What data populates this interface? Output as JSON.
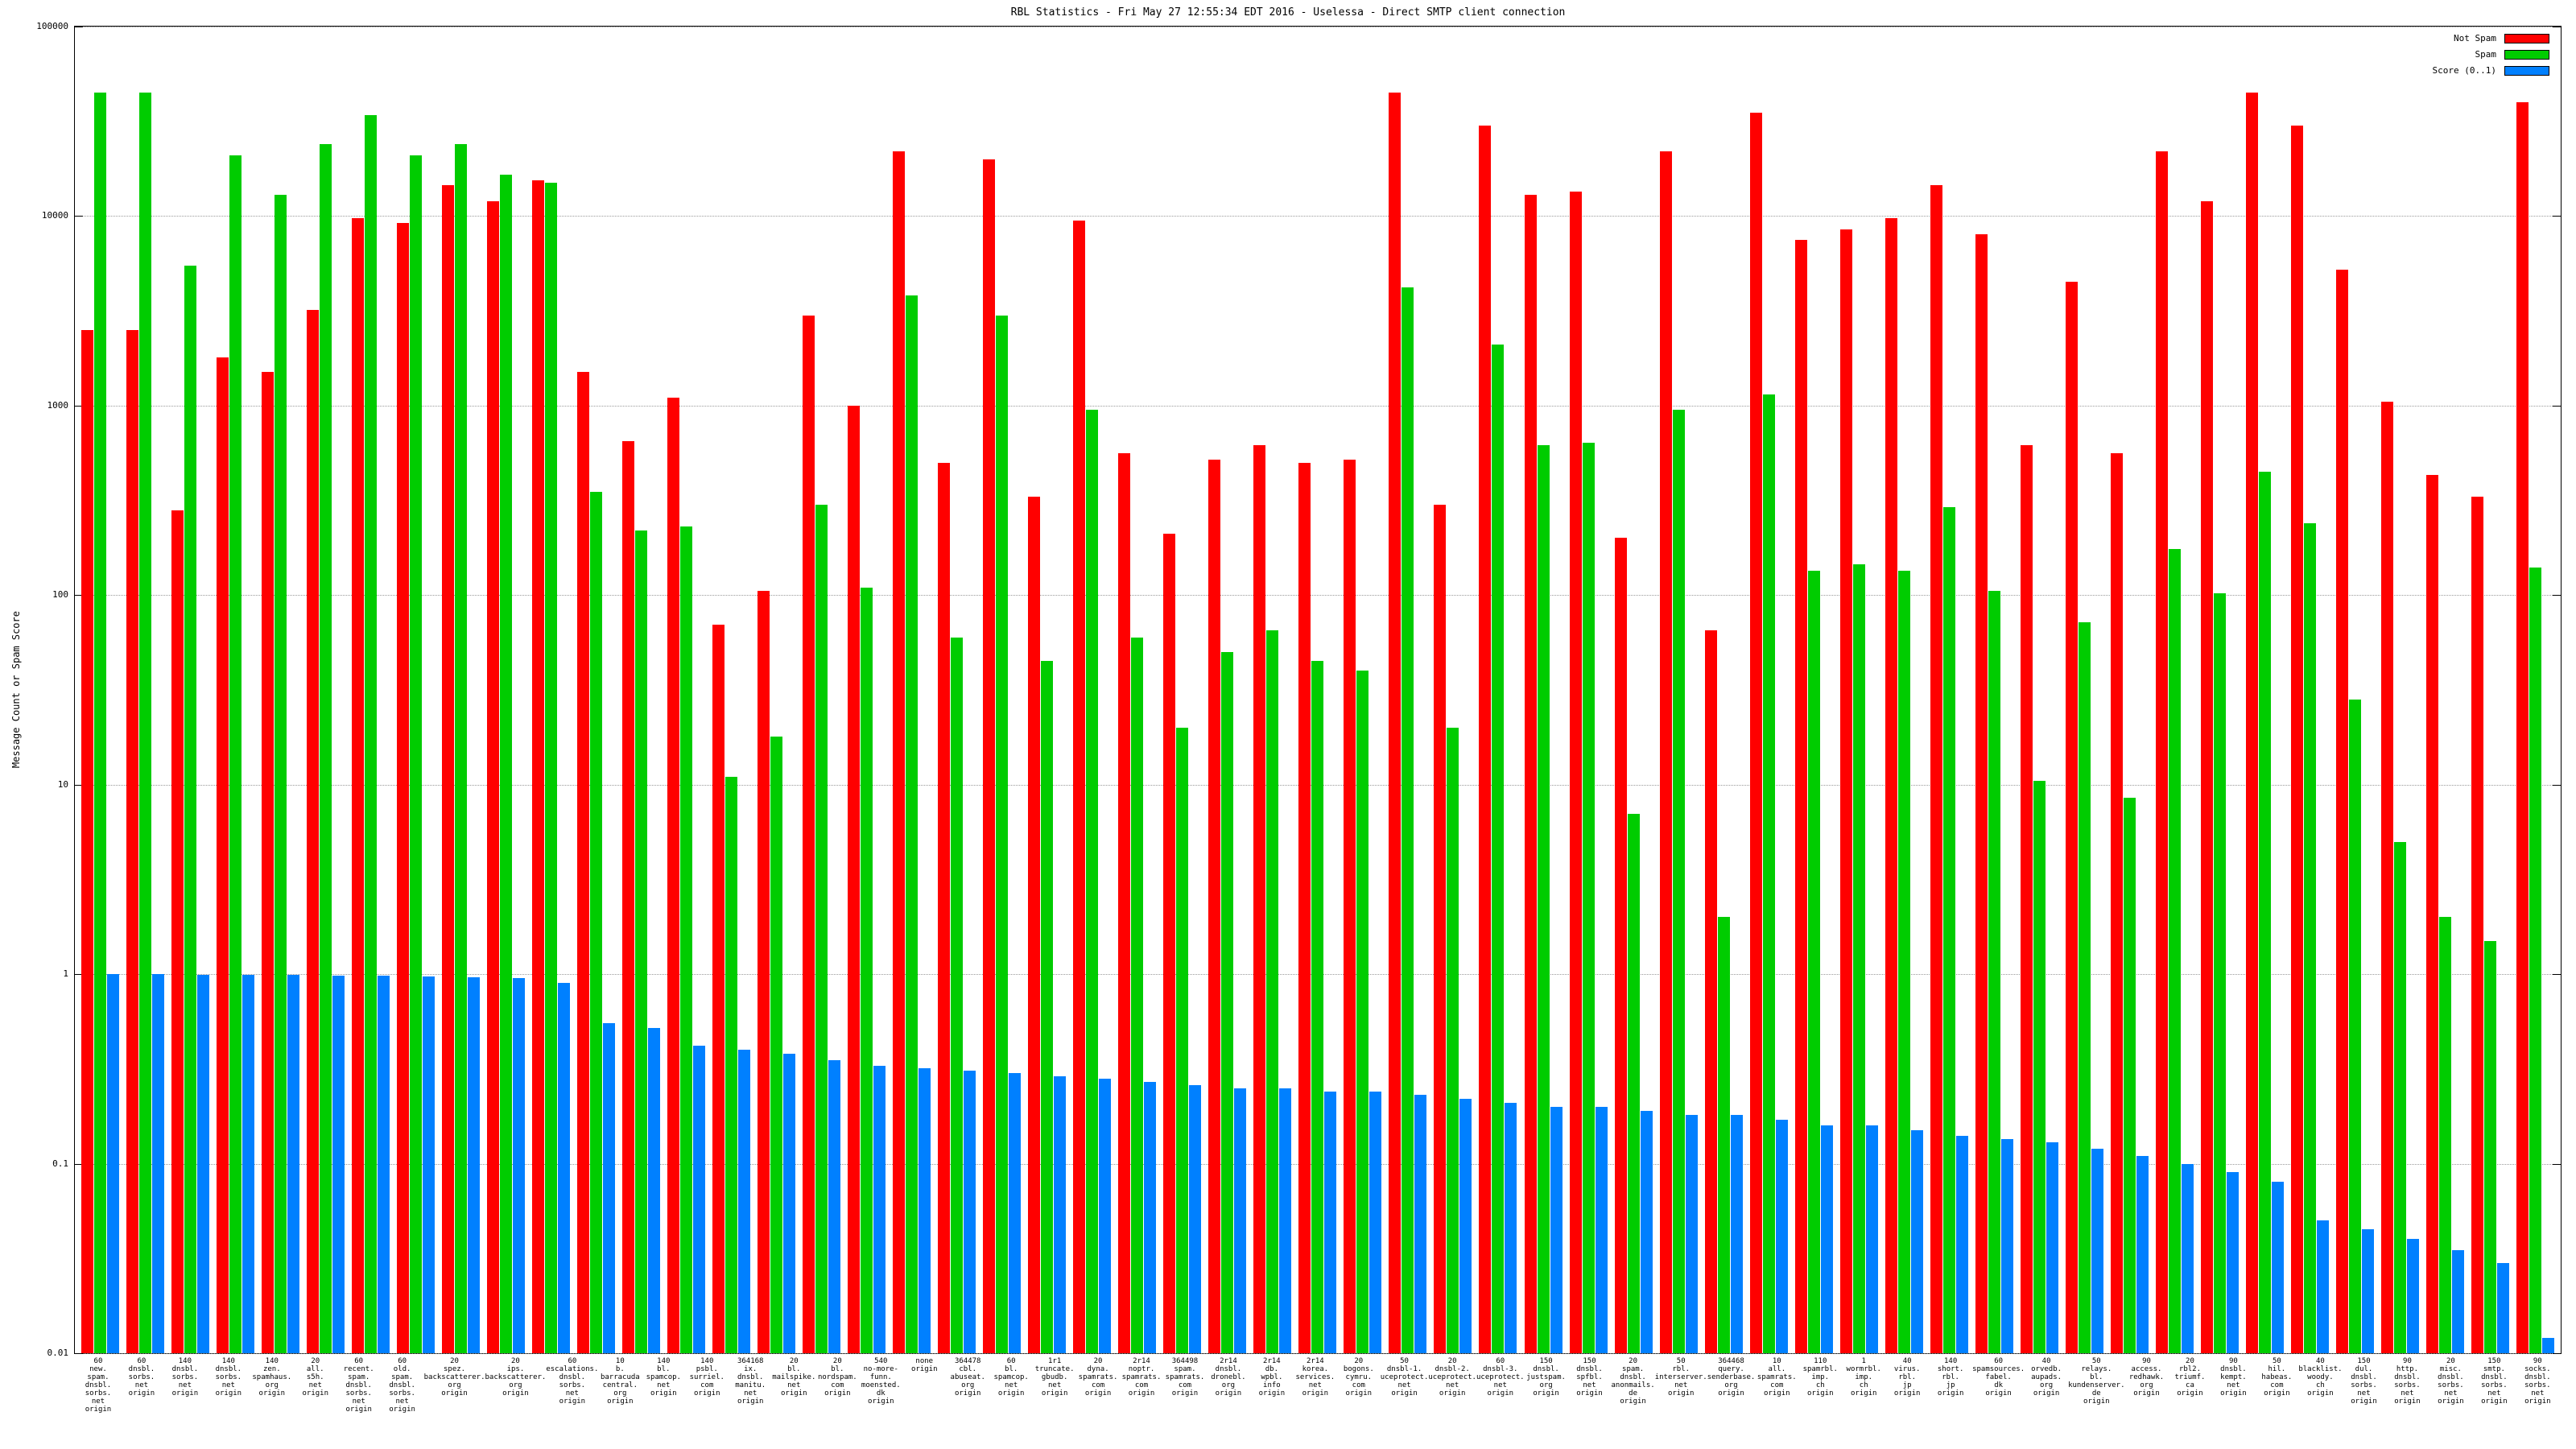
{
  "chart_data": {
    "type": "bar",
    "title": "RBL Statistics - Fri May 27 12:55:34 EDT 2016 - Uselessa - Direct SMTP client connection",
    "ylabel": "Message Count or Spam Score",
    "yscale": "log",
    "ylim": [
      0.01,
      100000
    ],
    "yticks": [
      "100000",
      "10000",
      "1000",
      "100",
      "10",
      "1",
      "0.1",
      "0.01"
    ],
    "grid": true,
    "legend_position": "top-right",
    "legend": [
      {
        "label": "Not Spam",
        "color": "#ff0000",
        "series_key": "not_spam"
      },
      {
        "label": "Spam",
        "color": "#00cc00",
        "series_key": "spam"
      },
      {
        "label": "Score (0..1)",
        "color": "#0080ff",
        "series_key": "score"
      }
    ],
    "groups": [
      {
        "label_lines": [
          "60",
          "new.",
          "spam.",
          "dnsbl.",
          "sorbs.",
          "net",
          "origin"
        ],
        "not_spam": 2500,
        "spam": 45000,
        "score": 1.0
      },
      {
        "label_lines": [
          "60",
          "dnsbl.",
          "sorbs.",
          "net",
          "origin"
        ],
        "not_spam": 2500,
        "spam": 45000,
        "score": 1.0
      },
      {
        "label_lines": [
          "140",
          "dnsbl.",
          "sorbs.",
          "net",
          "origin"
        ],
        "not_spam": 280,
        "spam": 5500,
        "score": 0.99
      },
      {
        "label_lines": [
          "140",
          "dnsbl.",
          "sorbs.",
          "net",
          "origin"
        ],
        "not_spam": 1800,
        "spam": 21000,
        "score": 0.99
      },
      {
        "label_lines": [
          "140",
          "zen.",
          "spamhaus.",
          "org",
          "origin"
        ],
        "not_spam": 1500,
        "spam": 13000,
        "score": 0.99
      },
      {
        "label_lines": [
          "20",
          "all.",
          "s5h.",
          "net",
          "origin"
        ],
        "not_spam": 3200,
        "spam": 24000,
        "score": 0.98
      },
      {
        "label_lines": [
          "60",
          "recent.",
          "spam.",
          "dnsbl.",
          "sorbs.",
          "net",
          "origin"
        ],
        "not_spam": 9800,
        "spam": 34000,
        "score": 0.98
      },
      {
        "label_lines": [
          "60",
          "old.",
          "spam.",
          "dnsbl.",
          "sorbs.",
          "net",
          "origin"
        ],
        "not_spam": 9200,
        "spam": 21000,
        "score": 0.97
      },
      {
        "label_lines": [
          "20",
          "spez.",
          "backscatterer.",
          "org",
          "origin"
        ],
        "not_spam": 14500,
        "spam": 24000,
        "score": 0.96
      },
      {
        "label_lines": [
          "20",
          "ips.",
          "backscatterer.",
          "org",
          "origin"
        ],
        "not_spam": 12000,
        "spam": 16500,
        "score": 0.95
      },
      {
        "label_lines": [
          "60",
          "escalations.",
          "dnsbl.",
          "sorbs.",
          "net",
          "origin"
        ],
        "not_spam": 15500,
        "spam": 15000,
        "score": 0.9
      },
      {
        "label_lines": [
          "10",
          "b.",
          "barracuda",
          "central.",
          "org",
          "origin"
        ],
        "not_spam": 1500,
        "spam": 350,
        "score": 0.55
      },
      {
        "label_lines": [
          "140",
          "bl.",
          "spamcop.",
          "net",
          "origin"
        ],
        "not_spam": 650,
        "spam": 220,
        "score": 0.52
      },
      {
        "label_lines": [
          "140",
          "psbl.",
          "surriel.",
          "com",
          "origin"
        ],
        "not_spam": 1100,
        "spam": 230,
        "score": 0.42
      },
      {
        "label_lines": [
          "364168",
          "ix.",
          "dnsbl.",
          "manitu.",
          "net",
          "origin"
        ],
        "not_spam": 70,
        "spam": 11,
        "score": 0.4
      },
      {
        "label_lines": [
          "20",
          "bl.",
          "mailspike.",
          "net",
          "origin"
        ],
        "not_spam": 105,
        "spam": 18,
        "score": 0.38
      },
      {
        "label_lines": [
          "20",
          "bl.",
          "nordspam.",
          "com",
          "origin"
        ],
        "not_spam": 3000,
        "spam": 300,
        "score": 0.35
      },
      {
        "label_lines": [
          "540",
          "no-more-funn.",
          "moensted.",
          "dk",
          "origin"
        ],
        "not_spam": 1000,
        "spam": 110,
        "score": 0.33
      },
      {
        "label_lines": [
          "none",
          "origin"
        ],
        "not_spam": 22000,
        "spam": 3800,
        "score": 0.32
      },
      {
        "label_lines": [
          "364478",
          "cbl.",
          "abuseat.",
          "org",
          "origin"
        ],
        "not_spam": 500,
        "spam": 60,
        "score": 0.31
      },
      {
        "label_lines": [
          "60",
          "bl.",
          "spamcop.",
          "net",
          "origin"
        ],
        "not_spam": 20000,
        "spam": 3000,
        "score": 0.3
      },
      {
        "label_lines": [
          "1r1",
          "truncate.",
          "gbudb.",
          "net",
          "origin"
        ],
        "not_spam": 330,
        "spam": 45,
        "score": 0.29
      },
      {
        "label_lines": [
          "20",
          "dyna.",
          "spamrats.",
          "com",
          "origin"
        ],
        "not_spam": 9500,
        "spam": 950,
        "score": 0.28
      },
      {
        "label_lines": [
          "2r14",
          "noptr.",
          "spamrats.",
          "com",
          "origin"
        ],
        "not_spam": 560,
        "spam": 60,
        "score": 0.27
      },
      {
        "label_lines": [
          "364498",
          "spam.",
          "spamrats.",
          "com",
          "origin"
        ],
        "not_spam": 210,
        "spam": 20,
        "score": 0.26
      },
      {
        "label_lines": [
          "2r14",
          "dnsbl.",
          "dronebl.",
          "org",
          "origin"
        ],
        "not_spam": 520,
        "spam": 50,
        "score": 0.25
      },
      {
        "label_lines": [
          "2r14",
          "db.",
          "wpbl.",
          "info",
          "origin"
        ],
        "not_spam": 620,
        "spam": 65,
        "score": 0.25
      },
      {
        "label_lines": [
          "2r14",
          "korea.",
          "services.",
          "net",
          "origin"
        ],
        "not_spam": 500,
        "spam": 45,
        "score": 0.24
      },
      {
        "label_lines": [
          "20",
          "bogons.",
          "cymru.",
          "com",
          "origin"
        ],
        "not_spam": 520,
        "spam": 40,
        "score": 0.24
      },
      {
        "label_lines": [
          "50",
          "dnsbl-1.",
          "uceprotect.",
          "net",
          "origin"
        ],
        "not_spam": 45000,
        "spam": 4200,
        "score": 0.23
      },
      {
        "label_lines": [
          "20",
          "dnsbl-2.",
          "uceprotect.",
          "net",
          "origin"
        ],
        "not_spam": 300,
        "spam": 20,
        "score": 0.22
      },
      {
        "label_lines": [
          "60",
          "dnsbl-3.",
          "uceprotect.",
          "net",
          "origin"
        ],
        "not_spam": 30000,
        "spam": 2100,
        "score": 0.21
      },
      {
        "label_lines": [
          "150",
          "dnsbl.",
          "justspam.",
          "org",
          "origin"
        ],
        "not_spam": 13000,
        "spam": 620,
        "score": 0.2
      },
      {
        "label_lines": [
          "150",
          "dnsbl.",
          "spfbl.",
          "net",
          "origin"
        ],
        "not_spam": 13500,
        "spam": 640,
        "score": 0.2
      },
      {
        "label_lines": [
          "20",
          "spam.",
          "dnsbl.",
          "anonmails.",
          "de",
          "origin"
        ],
        "not_spam": 200,
        "spam": 7,
        "score": 0.19
      },
      {
        "label_lines": [
          "50",
          "rbl.",
          "interserver.",
          "net",
          "origin"
        ],
        "not_spam": 22000,
        "spam": 950,
        "score": 0.18
      },
      {
        "label_lines": [
          "364468",
          "query.",
          "senderbase.",
          "org",
          "origin"
        ],
        "not_spam": 65,
        "spam": 2,
        "score": 0.18
      },
      {
        "label_lines": [
          "10",
          "all.",
          "spamrats.",
          "com",
          "origin"
        ],
        "not_spam": 35000,
        "spam": 1150,
        "score": 0.17
      },
      {
        "label_lines": [
          "110",
          "spamrbl.",
          "imp.",
          "ch",
          "origin"
        ],
        "not_spam": 7500,
        "spam": 135,
        "score": 0.16
      },
      {
        "label_lines": [
          "1",
          "wormrbl.",
          "imp.",
          "ch",
          "origin"
        ],
        "not_spam": 8500,
        "spam": 145,
        "score": 0.16
      },
      {
        "label_lines": [
          "40",
          "virus.",
          "rbl.",
          "jp",
          "origin"
        ],
        "not_spam": 9800,
        "spam": 135,
        "score": 0.15
      },
      {
        "label_lines": [
          "140",
          "short.",
          "rbl.",
          "jp",
          "origin"
        ],
        "not_spam": 14500,
        "spam": 290,
        "score": 0.14
      },
      {
        "label_lines": [
          "60",
          "spamsources.",
          "fabel.",
          "dk",
          "origin"
        ],
        "not_spam": 8000,
        "spam": 105,
        "score": 0.135
      },
      {
        "label_lines": [
          "40",
          "orvedb.",
          "aupads.",
          "org",
          "origin"
        ],
        "not_spam": 620,
        "spam": 10.5,
        "score": 0.13
      },
      {
        "label_lines": [
          "50",
          "relays.",
          "bl.",
          "kundenserver.",
          "de",
          "origin"
        ],
        "not_spam": 4500,
        "spam": 72,
        "score": 0.12
      },
      {
        "label_lines": [
          "90",
          "access.",
          "redhawk.",
          "org",
          "origin"
        ],
        "not_spam": 560,
        "spam": 8.5,
        "score": 0.11
      },
      {
        "label_lines": [
          "20",
          "rbl2.",
          "triumf.",
          "ca",
          "origin"
        ],
        "not_spam": 22000,
        "spam": 175,
        "score": 0.1
      },
      {
        "label_lines": [
          "90",
          "dnsbl.",
          "kempt.",
          "net",
          "origin"
        ],
        "not_spam": 12000,
        "spam": 102,
        "score": 0.09
      },
      {
        "label_lines": [
          "50",
          "hil.",
          "habeas.",
          "com",
          "origin"
        ],
        "not_spam": 45000,
        "spam": 450,
        "score": 0.08
      },
      {
        "label_lines": [
          "40",
          "blacklist.",
          "woody.",
          "ch",
          "origin"
        ],
        "not_spam": 30000,
        "spam": 240,
        "score": 0.05
      },
      {
        "label_lines": [
          "150",
          "dul.",
          "dnsbl.",
          "sorbs.",
          "net",
          "origin"
        ],
        "not_spam": 5200,
        "spam": 28,
        "score": 0.045
      },
      {
        "label_lines": [
          "90",
          "http.",
          "dnsbl.",
          "sorbs.",
          "net",
          "origin"
        ],
        "not_spam": 1050,
        "spam": 5,
        "score": 0.04
      },
      {
        "label_lines": [
          "20",
          "misc.",
          "dnsbl.",
          "sorbs.",
          "net",
          "origin"
        ],
        "not_spam": 430,
        "spam": 2,
        "score": 0.035
      },
      {
        "label_lines": [
          "150",
          "smtp.",
          "dnsbl.",
          "sorbs.",
          "net",
          "origin"
        ],
        "not_spam": 330,
        "spam": 1.5,
        "score": 0.03
      },
      {
        "label_lines": [
          "90",
          "socks.",
          "dnsbl.",
          "sorbs.",
          "net",
          "origin"
        ],
        "not_spam": 40000,
        "spam": 140,
        "score": 0.012
      }
    ]
  }
}
